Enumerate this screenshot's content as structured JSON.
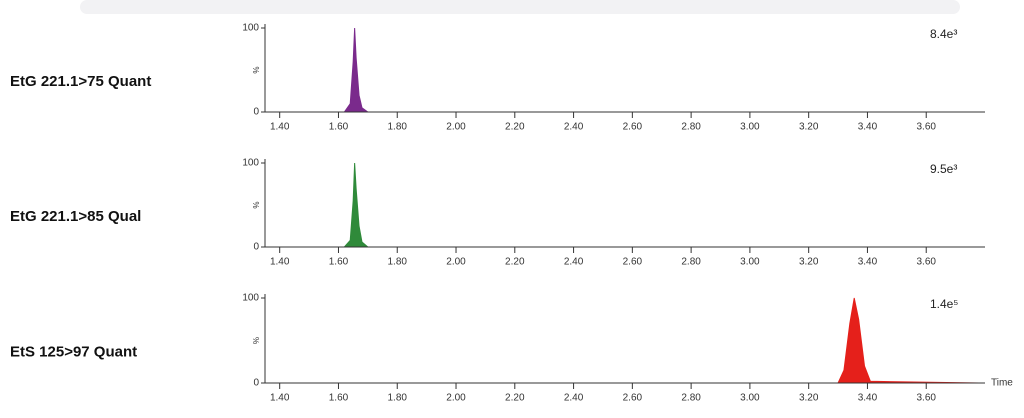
{
  "chart_data": [
    {
      "type": "area",
      "title": "EtG 221.1>75 Quant",
      "annotation": "8.4e³",
      "ylabel": "%",
      "xlim": [
        1.35,
        3.8
      ],
      "ylim": [
        0,
        100
      ],
      "yticks": [
        0,
        100
      ],
      "xticks": [
        {
          "value": 1.4,
          "label": "1.40"
        },
        {
          "value": 1.6,
          "label": "1.60"
        },
        {
          "value": 1.8,
          "label": "1.80"
        },
        {
          "value": 2.0,
          "label": "2.00"
        },
        {
          "value": 2.2,
          "label": "2.20"
        },
        {
          "value": 2.4,
          "label": "2.40"
        },
        {
          "value": 2.6,
          "label": "2.60"
        },
        {
          "value": 2.8,
          "label": "2.80"
        },
        {
          "value": 3.0,
          "label": "3.00"
        },
        {
          "value": 3.2,
          "label": "3.20"
        },
        {
          "value": 3.4,
          "label": "3.40"
        },
        {
          "value": 3.6,
          "label": "3.60"
        }
      ],
      "series": [
        {
          "color": "#7a2a8c",
          "x": [
            1.35,
            1.62,
            1.64,
            1.65,
            1.655,
            1.66,
            1.67,
            1.68,
            1.7,
            1.88
          ],
          "values": [
            0,
            0,
            10,
            60,
            100,
            65,
            20,
            5,
            0,
            0
          ]
        }
      ]
    },
    {
      "type": "area",
      "title": "EtG 221.1>85 Qual",
      "annotation": "9.5e³",
      "ylabel": "%",
      "xlim": [
        1.35,
        3.8
      ],
      "ylim": [
        0,
        100
      ],
      "yticks": [
        0,
        100
      ],
      "xticks": [
        {
          "value": 1.4,
          "label": "1.40"
        },
        {
          "value": 1.6,
          "label": "1.60"
        },
        {
          "value": 1.8,
          "label": "1.80"
        },
        {
          "value": 2.0,
          "label": "2.00"
        },
        {
          "value": 2.2,
          "label": "2.20"
        },
        {
          "value": 2.4,
          "label": "2.40"
        },
        {
          "value": 2.6,
          "label": "2.60"
        },
        {
          "value": 2.8,
          "label": "2.80"
        },
        {
          "value": 3.0,
          "label": "3.00"
        },
        {
          "value": 3.2,
          "label": "3.20"
        },
        {
          "value": 3.4,
          "label": "3.40"
        },
        {
          "value": 3.6,
          "label": "3.60"
        }
      ],
      "series": [
        {
          "color": "#2f8a3a",
          "x": [
            1.35,
            1.62,
            1.64,
            1.65,
            1.655,
            1.66,
            1.67,
            1.68,
            1.7,
            1.88
          ],
          "values": [
            0,
            0,
            8,
            55,
            100,
            70,
            25,
            6,
            0,
            0
          ]
        }
      ]
    },
    {
      "type": "area",
      "title": "EtS 125>97 Quant",
      "annotation": "1.4e⁵",
      "ylabel": "%",
      "xlabel": "Time",
      "xlim": [
        1.35,
        3.8
      ],
      "ylim": [
        0,
        100
      ],
      "yticks": [
        0,
        100
      ],
      "xticks": [
        {
          "value": 1.4,
          "label": "1.40"
        },
        {
          "value": 1.6,
          "label": "1.60"
        },
        {
          "value": 1.8,
          "label": "1.80"
        },
        {
          "value": 2.0,
          "label": "2.00"
        },
        {
          "value": 2.2,
          "label": "2.20"
        },
        {
          "value": 2.4,
          "label": "2.40"
        },
        {
          "value": 2.6,
          "label": "2.60"
        },
        {
          "value": 2.8,
          "label": "2.80"
        },
        {
          "value": 3.0,
          "label": "3.00"
        },
        {
          "value": 3.2,
          "label": "3.20"
        },
        {
          "value": 3.4,
          "label": "3.40"
        },
        {
          "value": 3.6,
          "label": "3.60"
        }
      ],
      "series": [
        {
          "color": "#e5201b",
          "x": [
            3.0,
            3.3,
            3.32,
            3.34,
            3.355,
            3.37,
            3.39,
            3.41,
            3.78
          ],
          "values": [
            0,
            0,
            15,
            70,
            100,
            75,
            20,
            2,
            0
          ]
        }
      ]
    }
  ]
}
